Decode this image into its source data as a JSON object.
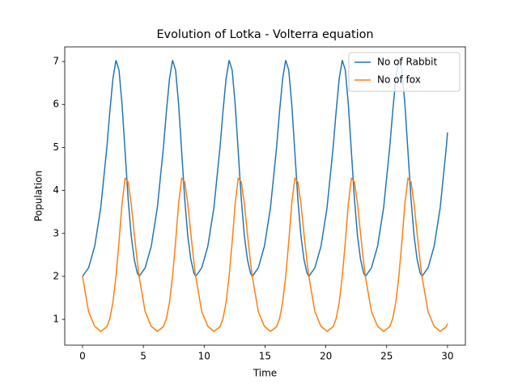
{
  "chart_data": {
    "type": "line",
    "title": "Evolution of Lotka - Volterra equation",
    "xlabel": "Time",
    "ylabel": "Population",
    "x": [
      0,
      0.5,
      1,
      1.5,
      2,
      2.25,
      2.5,
      2.75,
      3,
      3.25,
      3.5,
      3.75,
      4,
      4.25,
      4.5,
      4.65,
      5.15,
      5.65,
      6.15,
      6.65,
      6.9,
      7.15,
      7.4,
      7.65,
      7.9,
      8.15,
      8.4,
      8.65,
      8.9,
      9.15,
      9.3,
      9.8,
      10.3,
      10.8,
      11.3,
      11.55,
      11.8,
      12.05,
      12.3,
      12.55,
      12.8,
      13.05,
      13.3,
      13.55,
      13.8,
      13.95,
      14.45,
      14.95,
      15.45,
      15.95,
      16.2,
      16.45,
      16.7,
      16.95,
      17.2,
      17.45,
      17.7,
      17.95,
      18.2,
      18.45,
      18.6,
      19.1,
      19.6,
      20.1,
      20.6,
      20.85,
      21.1,
      21.35,
      21.6,
      21.85,
      22.1,
      22.35,
      22.6,
      22.85,
      23.1,
      23.25,
      23.75,
      24.25,
      24.75,
      25.25,
      25.5,
      25.75,
      26,
      26.25,
      26.5,
      26.75,
      27,
      27.25,
      27.5,
      27.75,
      27.9,
      28.4,
      28.9,
      29.4,
      29.9,
      30
    ],
    "series": [
      {
        "name": "No of Rabbit",
        "color": "#1f77b4",
        "values": [
          2.0,
          2.2,
          2.7,
          3.6,
          5.0,
          5.85,
          6.6,
          7.03,
          6.8,
          6.0,
          4.9,
          3.8,
          2.95,
          2.4,
          2.08,
          2.0,
          2.2,
          2.7,
          3.6,
          5.0,
          5.85,
          6.6,
          7.03,
          6.8,
          6.0,
          4.9,
          3.8,
          2.95,
          2.4,
          2.08,
          2.0,
          2.2,
          2.7,
          3.6,
          5.0,
          5.85,
          6.6,
          7.03,
          6.8,
          6.0,
          4.9,
          3.8,
          2.95,
          2.4,
          2.08,
          2.0,
          2.2,
          2.7,
          3.6,
          5.0,
          5.85,
          6.6,
          7.03,
          6.8,
          6.0,
          4.9,
          3.8,
          2.95,
          2.4,
          2.08,
          2.0,
          2.2,
          2.7,
          3.6,
          5.0,
          5.85,
          6.6,
          7.03,
          6.8,
          6.0,
          4.9,
          3.8,
          2.95,
          2.4,
          2.08,
          2.0,
          2.2,
          2.7,
          3.6,
          5.0,
          5.85,
          6.6,
          7.03,
          6.8,
          6.0,
          4.9,
          3.8,
          2.95,
          2.4,
          2.08,
          2.0,
          2.2,
          2.7,
          3.6,
          5.0,
          5.35
        ]
      },
      {
        "name": "No of fox",
        "color": "#ff7f0e",
        "values": [
          2.0,
          1.18,
          0.84,
          0.72,
          0.83,
          1.02,
          1.4,
          2.0,
          2.8,
          3.7,
          4.28,
          4.2,
          3.7,
          3.0,
          2.35,
          2.0,
          1.18,
          0.84,
          0.72,
          0.83,
          1.02,
          1.4,
          2.0,
          2.8,
          3.7,
          4.28,
          4.2,
          3.7,
          3.0,
          2.35,
          2.0,
          1.18,
          0.84,
          0.72,
          0.83,
          1.02,
          1.4,
          2.0,
          2.8,
          3.7,
          4.28,
          4.2,
          3.7,
          3.0,
          2.35,
          2.0,
          1.18,
          0.84,
          0.72,
          0.83,
          1.02,
          1.4,
          2.0,
          2.8,
          3.7,
          4.28,
          4.2,
          3.7,
          3.0,
          2.35,
          2.0,
          1.18,
          0.84,
          0.72,
          0.83,
          1.02,
          1.4,
          2.0,
          2.8,
          3.7,
          4.28,
          4.2,
          3.7,
          3.0,
          2.35,
          2.0,
          1.18,
          0.84,
          0.72,
          0.83,
          1.02,
          1.4,
          2.0,
          2.8,
          3.7,
          4.28,
          4.2,
          3.7,
          3.0,
          2.35,
          2.0,
          1.18,
          0.84,
          0.72,
          0.83,
          0.9
        ]
      }
    ],
    "xlim": [
      -1.46,
      31.47
    ],
    "xticks": [
      0,
      5,
      10,
      15,
      20,
      25,
      30
    ],
    "ylim": [
      0.4,
      7.34
    ],
    "yticks": [
      1,
      2,
      3,
      4,
      5,
      6,
      7
    ],
    "grid": false,
    "legend": "upper right"
  }
}
